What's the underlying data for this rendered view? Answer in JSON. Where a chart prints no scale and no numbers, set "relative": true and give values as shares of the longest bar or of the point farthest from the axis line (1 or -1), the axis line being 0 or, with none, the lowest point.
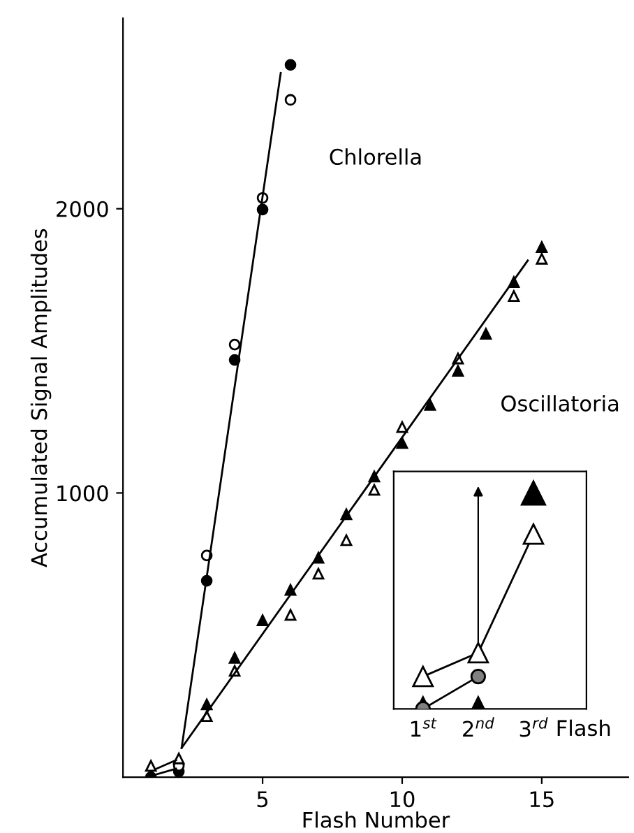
{
  "chart_data": [
    {
      "type": "scatter",
      "xlabel": "Flash Number",
      "ylabel": "Accumulated Signal Amplitudes",
      "xlim": [
        0,
        18.1
      ],
      "ylim": [
        0,
        2670
      ],
      "xticks": [
        5,
        10,
        15
      ],
      "yticks": [
        1000,
        2000
      ],
      "annotations": [
        "Chlorella",
        "Oscillatoria"
      ],
      "series": [
        {
          "type": "line",
          "color": "#000000",
          "x": [
            2.1,
            5.65
          ],
          "values": [
            103,
            2478
          ]
        },
        {
          "type": "line",
          "color": "#000000",
          "x": [
            2.1,
            14.5
          ],
          "values": [
            103,
            1818
          ]
        },
        {
          "type": "line",
          "color": "#000000",
          "x": [
            1.2,
            1.9
          ],
          "values": [
            30,
            60
          ]
        },
        {
          "type": "line",
          "color": "#000000",
          "x": [
            1.2,
            1.9
          ],
          "values": [
            10,
            30
          ]
        },
        {
          "marker": "circle",
          "color": "#000000",
          "x": [
            1,
            2,
            3,
            4,
            5,
            6
          ],
          "values": [
            0,
            20,
            691,
            1468,
            1997,
            2506
          ]
        },
        {
          "marker": "circle",
          "color": "#ffffff",
          "x": [
            2,
            3,
            4,
            5,
            6
          ],
          "values": [
            40,
            780,
            1522,
            2038,
            2383
          ]
        },
        {
          "marker": "triangle",
          "color": "#000000",
          "x": [
            3,
            4,
            5,
            6,
            7,
            8,
            9,
            10,
            11,
            12,
            13,
            14,
            15
          ],
          "values": [
            256,
            420,
            552,
            659,
            772,
            925,
            1058,
            1176,
            1310,
            1430,
            1560,
            1742,
            1865
          ]
        },
        {
          "marker": "triangle",
          "color": "#ffffff",
          "x": [
            1,
            2,
            3,
            4,
            6,
            7,
            8,
            9,
            10,
            12,
            14,
            15
          ],
          "values": [
            40,
            66,
            215,
            374,
            571,
            716,
            834,
            1011,
            1232,
            1473,
            1693,
            1824
          ]
        }
      ]
    },
    {
      "type": "line",
      "relative": true,
      "categories": [
        "1$^{st}$",
        "2$^{nd}$",
        "3$^{rd}$"
      ],
      "xlabel": "Flash",
      "series": [
        {
          "marker": "triangle",
          "color": "#ffffff",
          "values": [
            0.15,
            0.26,
            0.81
          ]
        },
        {
          "marker": "circle",
          "color": "#808080",
          "values": [
            0,
            0.15,
            null
          ]
        },
        {
          "type": "scatter",
          "marker": "triangle",
          "color": "#000000",
          "values": [
            0,
            0,
            1
          ]
        }
      ]
    }
  ]
}
